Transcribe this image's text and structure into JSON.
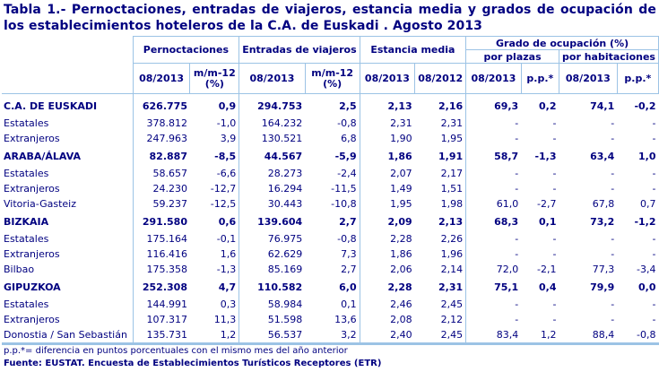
{
  "title": "Tabla 1.- Pernoctaciones, entradas de viajeros, estancia media y grados de ocupación de los establecimientos hoteleros de la C.A. de Euskadi . Agosto 2013",
  "headers": {
    "pernoctaciones": "Pernoctaciones",
    "entradas": "Entradas de viajeros",
    "estancia": "Estancia media",
    "grado": "Grado de ocupación (%)",
    "por_plazas": "por plazas",
    "por_habitaciones": "por habitaciones",
    "col_0813": "08/2013",
    "col_0812": "08/2012",
    "col_mm12": "m/m-12",
    "col_mm12_unit": "(%)",
    "col_pp": "p.p.*"
  },
  "rows": [
    {
      "label": "C.A. DE EUSKADI",
      "bold": true,
      "pern": "626.775",
      "pern_mm": "0,9",
      "ent": "294.753",
      "ent_mm": "2,5",
      "est13": "2,13",
      "est12": "2,16",
      "pl13": "69,3",
      "plpp": "0,2",
      "hab13": "74,1",
      "habpp": "-0,2"
    },
    {
      "label": "Estatales",
      "bold": false,
      "pern": "378.812",
      "pern_mm": "-1,0",
      "ent": "164.232",
      "ent_mm": "-0,8",
      "est13": "2,31",
      "est12": "2,31",
      "pl13": "-",
      "plpp": "-",
      "hab13": "-",
      "habpp": "-"
    },
    {
      "label": "Extranjeros",
      "bold": false,
      "pern": "247.963",
      "pern_mm": "3,9",
      "ent": "130.521",
      "ent_mm": "6,8",
      "est13": "1,90",
      "est12": "1,95",
      "pl13": "-",
      "plpp": "-",
      "hab13": "-",
      "habpp": "-"
    },
    {
      "label": "ARABA/ÁLAVA",
      "bold": true,
      "pern": "82.887",
      "pern_mm": "-8,5",
      "ent": "44.567",
      "ent_mm": "-5,9",
      "est13": "1,86",
      "est12": "1,91",
      "pl13": "58,7",
      "plpp": "-1,3",
      "hab13": "63,4",
      "habpp": "1,0"
    },
    {
      "label": "Estatales",
      "bold": false,
      "pern": "58.657",
      "pern_mm": "-6,6",
      "ent": "28.273",
      "ent_mm": "-2,4",
      "est13": "2,07",
      "est12": "2,17",
      "pl13": "-",
      "plpp": "-",
      "hab13": "-",
      "habpp": "-"
    },
    {
      "label": "Extranjeros",
      "bold": false,
      "pern": "24.230",
      "pern_mm": "-12,7",
      "ent": "16.294",
      "ent_mm": "-11,5",
      "est13": "1,49",
      "est12": "1,51",
      "pl13": "-",
      "plpp": "-",
      "hab13": "-",
      "habpp": "-"
    },
    {
      "label": "Vitoria-Gasteiz",
      "bold": false,
      "pern": "59.237",
      "pern_mm": "-12,5",
      "ent": "30.443",
      "ent_mm": "-10,8",
      "est13": "1,95",
      "est12": "1,98",
      "pl13": "61,0",
      "plpp": "-2,7",
      "hab13": "67,8",
      "habpp": "0,7"
    },
    {
      "label": "BIZKAIA",
      "bold": true,
      "pern": "291.580",
      "pern_mm": "0,6",
      "ent": "139.604",
      "ent_mm": "2,7",
      "est13": "2,09",
      "est12": "2,13",
      "pl13": "68,3",
      "plpp": "0,1",
      "hab13": "73,2",
      "habpp": "-1,2"
    },
    {
      "label": "Estatales",
      "bold": false,
      "pern": "175.164",
      "pern_mm": "-0,1",
      "ent": "76.975",
      "ent_mm": "-0,8",
      "est13": "2,28",
      "est12": "2,26",
      "pl13": "-",
      "plpp": "-",
      "hab13": "-",
      "habpp": "-"
    },
    {
      "label": "Extranjeros",
      "bold": false,
      "pern": "116.416",
      "pern_mm": "1,6",
      "ent": "62.629",
      "ent_mm": "7,3",
      "est13": "1,86",
      "est12": "1,96",
      "pl13": "-",
      "plpp": "-",
      "hab13": "-",
      "habpp": "-"
    },
    {
      "label": "Bilbao",
      "bold": false,
      "pern": "175.358",
      "pern_mm": "-1,3",
      "ent": "85.169",
      "ent_mm": "2,7",
      "est13": "2,06",
      "est12": "2,14",
      "pl13": "72,0",
      "plpp": "-2,1",
      "hab13": "77,3",
      "habpp": "-3,4"
    },
    {
      "label": "GIPUZKOA",
      "bold": true,
      "pern": "252.308",
      "pern_mm": "4,7",
      "ent": "110.582",
      "ent_mm": "6,0",
      "est13": "2,28",
      "est12": "2,31",
      "pl13": "75,1",
      "plpp": "0,4",
      "hab13": "79,9",
      "habpp": "0,0"
    },
    {
      "label": "Estatales",
      "bold": false,
      "pern": "144.991",
      "pern_mm": "0,3",
      "ent": "58.984",
      "ent_mm": "0,1",
      "est13": "2,46",
      "est12": "2,45",
      "pl13": "-",
      "plpp": "-",
      "hab13": "-",
      "habpp": "-"
    },
    {
      "label": "Extranjeros",
      "bold": false,
      "pern": "107.317",
      "pern_mm": "11,3",
      "ent": "51.598",
      "ent_mm": "13,6",
      "est13": "2,08",
      "est12": "2,12",
      "pl13": "-",
      "plpp": "-",
      "hab13": "-",
      "habpp": "-"
    },
    {
      "label": "Donostia / San Sebastián",
      "bold": false,
      "pern": "135.731",
      "pern_mm": "1,2",
      "ent": "56.537",
      "ent_mm": "3,2",
      "est13": "2,40",
      "est12": "2,45",
      "pl13": "83,4",
      "plpp": "1,2",
      "hab13": "88,4",
      "habpp": "-0,8"
    }
  ],
  "footnote": "p.p.*= diferencia en puntos porcentuales con el mismo mes del año anterior",
  "source": "Fuente: EUSTAT. Encuesta de Establecimientos Turísticos Receptores (ETR)",
  "colors": {
    "text": "#000080",
    "border": "#9cc3e5"
  }
}
